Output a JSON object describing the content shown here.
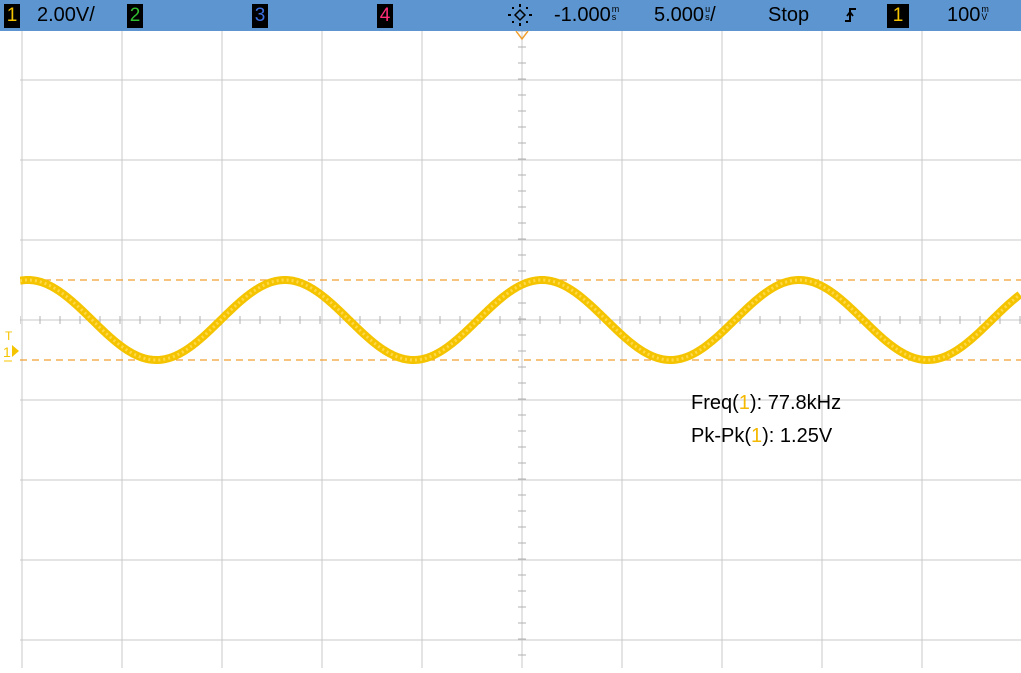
{
  "header": {
    "ch1_label": "1",
    "ch1_scale": "2.00V/",
    "ch2_label": "2",
    "ch3_label": "3",
    "ch4_label": "4",
    "trigger_icon": "trigger-position-icon",
    "time_offset_value": "-1.000",
    "time_offset_unit_top": "m",
    "time_offset_unit_bottom": "s",
    "timebase_value": "5.000",
    "timebase_unit_top": "u",
    "timebase_unit_bottom": "s",
    "timebase_slash": "/",
    "run_state": "Stop",
    "trigger_edge_icon": "rising-edge-icon",
    "trigger_source": "1",
    "trigger_level_value": "100",
    "trigger_level_unit_top": "m",
    "trigger_level_unit_bottom": "V",
    "colors": {
      "bar_bg": "#5c95cf",
      "ch1": "#f5c400",
      "ch2": "#2fbf2f",
      "ch3": "#3b6fe0",
      "ch4": "#ff2d78",
      "trace": "#f5c400"
    }
  },
  "markers": {
    "ch1_ground_marker": "1",
    "trigger_level_marker": "T"
  },
  "measurements": {
    "freq_label": "Freq(",
    "freq_channel": "1",
    "freq_suffix": "):",
    "freq_value": "77.8kHz",
    "pkpk_label": "Pk-Pk(",
    "pkpk_channel": "1",
    "pkpk_suffix": "):",
    "pkpk_value": "1.25V"
  },
  "chart_data": {
    "type": "line",
    "title": "",
    "xlabel": "",
    "ylabel": "",
    "time_per_div_us": 5.0,
    "volts_per_div": 2.0,
    "divisions_x": 10,
    "divisions_y": 8,
    "xlim_us": [
      -26,
      24
    ],
    "series": [
      {
        "channel": "1",
        "waveform": "sine",
        "frequency_khz": 77.8,
        "peak_to_peak_v": 1.25,
        "offset_v": 0.0,
        "phase_deg": 90
      }
    ],
    "cursor_lines_v": [
      0.625,
      -0.625
    ],
    "grid": true
  }
}
